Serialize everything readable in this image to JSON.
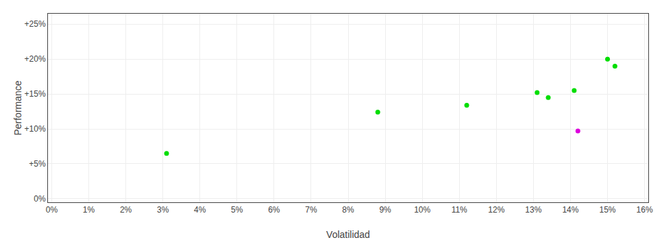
{
  "chart_data": {
    "type": "scatter",
    "x_label": "Volatilidad",
    "y_label": "Performance",
    "x": [
      0.031,
      0.088,
      0.112,
      0.131,
      0.134,
      0.141,
      0.142,
      0.15,
      0.152
    ],
    "values": [
      0.065,
      0.124,
      0.134,
      0.152,
      0.145,
      0.155,
      0.097,
      0.2,
      0.19
    ],
    "colors": [
      "#00dd00",
      "#00dd00",
      "#00dd00",
      "#00dd00",
      "#00dd00",
      "#00dd00",
      "#dd00dd",
      "#00dd00",
      "#00dd00"
    ],
    "xlim": [
      -0.001,
      0.161
    ],
    "ylim": [
      -0.005,
      0.265
    ],
    "xticks": [
      {
        "value": 0.0,
        "label": "0%"
      },
      {
        "value": 0.01,
        "label": "1%"
      },
      {
        "value": 0.02,
        "label": "2%"
      },
      {
        "value": 0.03,
        "label": "3%"
      },
      {
        "value": 0.04,
        "label": "4%"
      },
      {
        "value": 0.05,
        "label": "5%"
      },
      {
        "value": 0.06,
        "label": "6%"
      },
      {
        "value": 0.07,
        "label": "7%"
      },
      {
        "value": 0.08,
        "label": "8%"
      },
      {
        "value": 0.09,
        "label": "9%"
      },
      {
        "value": 0.1,
        "label": "10%"
      },
      {
        "value": 0.11,
        "label": "11%"
      },
      {
        "value": 0.12,
        "label": "12%"
      },
      {
        "value": 0.13,
        "label": "13%"
      },
      {
        "value": 0.14,
        "label": "14%"
      },
      {
        "value": 0.15,
        "label": "15%"
      },
      {
        "value": 0.16,
        "label": "16%"
      }
    ],
    "yticks": [
      {
        "value": 0.0,
        "label": "0%"
      },
      {
        "value": 0.05,
        "label": "+5%"
      },
      {
        "value": 0.1,
        "label": "+10%"
      },
      {
        "value": 0.15,
        "label": "+15%"
      },
      {
        "value": 0.2,
        "label": "+20%"
      },
      {
        "value": 0.25,
        "label": "+25%"
      }
    ],
    "grid": true
  }
}
